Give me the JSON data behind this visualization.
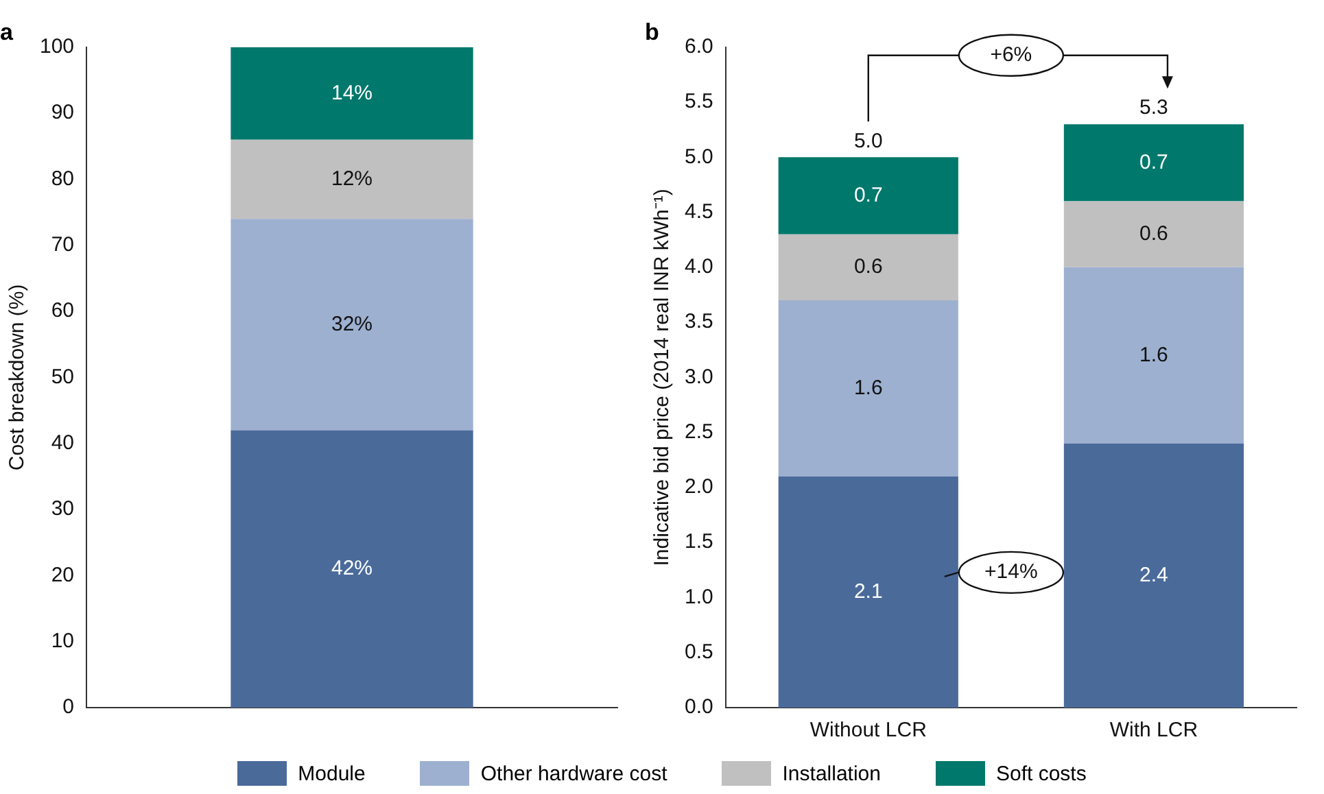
{
  "chart_data": [
    {
      "type": "bar",
      "title": "a",
      "ylabel": "Cost breakdown (%)",
      "categories": [
        null
      ],
      "stacked": true,
      "series": [
        {
          "color": "#4a6a9a",
          "values": [
            42
          ],
          "value_labels": [
            "42%"
          ]
        },
        {
          "color": "#9db0d0",
          "values": [
            32
          ],
          "value_labels": [
            "32%"
          ]
        },
        {
          "color": "#c0c0c0",
          "values": [
            12
          ],
          "value_labels": [
            "12%"
          ]
        },
        {
          "color": "#00786c",
          "values": [
            14
          ],
          "value_labels": [
            "14%"
          ]
        }
      ],
      "ylim": [
        0,
        100
      ],
      "yticks": [
        0,
        10,
        20,
        30,
        40,
        50,
        60,
        70,
        80,
        90,
        100
      ],
      "grid": false,
      "legend": false
    },
    {
      "type": "bar",
      "title": "b",
      "ylabel": "Indicative bid price (2014 real INR kWh⁻¹)",
      "categories": [
        "Without LCR",
        "With LCR"
      ],
      "stacked": true,
      "series": [
        {
          "name": "Module",
          "color": "#4a6a9a",
          "values": [
            2.1,
            2.4
          ]
        },
        {
          "name": "Other hardware cost",
          "color": "#9db0d0",
          "values": [
            1.6,
            1.6
          ]
        },
        {
          "name": "Installation",
          "color": "#c0c0c0",
          "values": [
            0.6,
            0.6
          ]
        },
        {
          "name": "Soft costs",
          "color": "#00786c",
          "values": [
            0.7,
            0.7
          ]
        }
      ],
      "data_labels": true,
      "totals": [
        "5.0",
        "5.3"
      ],
      "annotations": [
        "+6%",
        "+14%"
      ],
      "ylim": [
        0,
        6
      ],
      "yticks": [
        {
          "value": 0,
          "label": "0.0"
        },
        {
          "value": 0.5,
          "label": "0.5"
        },
        {
          "value": 1,
          "label": "1.0"
        },
        {
          "value": 1.5,
          "label": "1.5"
        },
        {
          "value": 2,
          "label": "2.0"
        },
        {
          "value": 2.5,
          "label": "2.5"
        },
        {
          "value": 3,
          "label": "3.0"
        },
        {
          "value": 3.5,
          "label": "3.5"
        },
        {
          "value": 4,
          "label": "4.0"
        },
        {
          "value": 4.5,
          "label": "4.5"
        },
        {
          "value": 5,
          "label": "5.0"
        },
        {
          "value": 5.5,
          "label": "5.5"
        },
        {
          "value": 6,
          "label": "6.0"
        }
      ],
      "grid": false,
      "legend": "bottom"
    }
  ]
}
